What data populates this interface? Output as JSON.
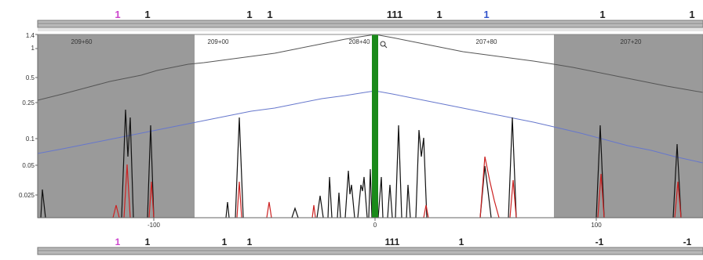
{
  "top_track": {
    "markers": [
      {
        "label": "1",
        "color": "#cc44cc"
      },
      {
        "label": "1",
        "color": "#222222"
      },
      {
        "label": "1",
        "color": "#222222"
      },
      {
        "label": "1",
        "color": "#222222"
      },
      {
        "label": "111",
        "color": "#222222"
      },
      {
        "label": "1",
        "color": "#222222"
      },
      {
        "label": "1",
        "color": "#3355cc"
      },
      {
        "label": "1",
        "color": "#222222"
      },
      {
        "label": "1",
        "color": "#222222"
      }
    ]
  },
  "region_labels": [
    "209+60",
    "209+00",
    "208+40",
    "207+80",
    "207+20"
  ],
  "y_axis": {
    "ticks": [
      "1.4",
      "1",
      "0.5",
      "0.25",
      "0.1",
      "0.05",
      "0.025"
    ]
  },
  "x_axis": {
    "ticks": [
      "-100",
      "0",
      "100"
    ]
  },
  "bottom_track": {
    "markers": [
      {
        "label": "1",
        "color": "#cc44cc"
      },
      {
        "label": "1",
        "color": "#222222"
      },
      {
        "label": "1",
        "color": "#222222"
      },
      {
        "label": "1",
        "color": "#222222"
      },
      {
        "label": "111",
        "color": "#222222"
      },
      {
        "label": "1",
        "color": "#222222"
      },
      {
        "label": "-1",
        "color": "#222222"
      },
      {
        "label": "-1",
        "color": "#222222"
      }
    ]
  },
  "colors": {
    "shade": "#9a9a9a",
    "center_bar": "#1a8a1a",
    "curve_black": "#555555",
    "curve_blue": "#6677cc",
    "peak_black": "#111111",
    "peak_red": "#cc2222"
  },
  "center_icon": "magnifier-icon"
}
